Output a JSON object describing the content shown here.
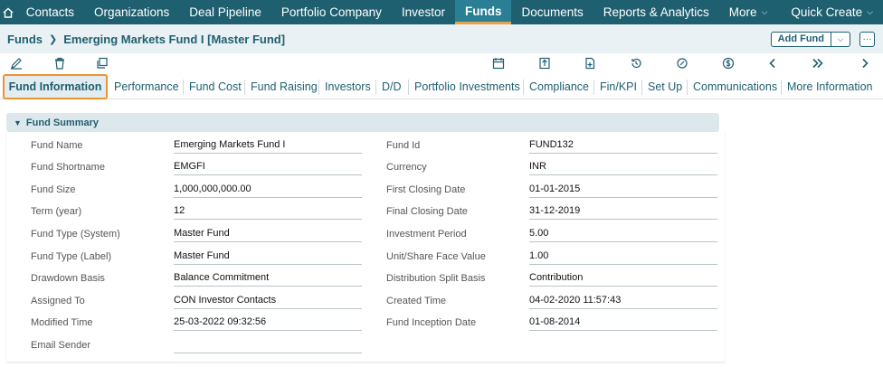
{
  "nav": {
    "items": [
      {
        "label": "Contacts"
      },
      {
        "label": "Organizations"
      },
      {
        "label": "Deal Pipeline"
      },
      {
        "label": "Portfolio Company"
      },
      {
        "label": "Investor"
      },
      {
        "label": "Funds"
      },
      {
        "label": "Documents"
      },
      {
        "label": "Reports & Analytics"
      }
    ],
    "more": "More",
    "quick_create": "Quick Create"
  },
  "breadcrumb": {
    "root": "Funds",
    "current": "Emerging Markets Fund I [Master Fund]"
  },
  "actions": {
    "add_fund": "Add Fund",
    "more": "···"
  },
  "tabs": {
    "active": "Fund Information",
    "items": [
      "Performance",
      "Fund Cost",
      "Fund Raising",
      "Investors",
      "D/D",
      "Portfolio Investments",
      "Compliance",
      "Fin/KPI",
      "Set Up",
      "Communications",
      "More Information"
    ]
  },
  "section": {
    "title": "Fund Summary"
  },
  "fields_left": [
    {
      "label": "Fund Name",
      "value": "Emerging Markets Fund I"
    },
    {
      "label": "Fund Shortname",
      "value": "EMGFI"
    },
    {
      "label": "Fund Size",
      "value": "1,000,000,000.00"
    },
    {
      "label": "Term (year)",
      "value": "12"
    },
    {
      "label": "Fund Type (System)",
      "value": "Master Fund"
    },
    {
      "label": "Fund Type (Label)",
      "value": "Master Fund"
    },
    {
      "label": "Drawdown Basis",
      "value": "Balance Commitment"
    },
    {
      "label": "Assigned To",
      "value": "CON Investor Contacts"
    },
    {
      "label": "Modified Time",
      "value": "25-03-2022 09:32:56"
    },
    {
      "label": "Email Sender",
      "value": ""
    }
  ],
  "fields_right": [
    {
      "label": "Fund Id",
      "value": "FUND132"
    },
    {
      "label": "Currency",
      "value": "INR"
    },
    {
      "label": "First Closing Date",
      "value": "01-01-2015"
    },
    {
      "label": "Final Closing Date",
      "value": "31-12-2019"
    },
    {
      "label": "Investment Period",
      "value": "5.00"
    },
    {
      "label": "Unit/Share Face Value",
      "value": "1.00"
    },
    {
      "label": "Distribution Split Basis",
      "value": "Contribution"
    },
    {
      "label": "Created Time",
      "value": "04-02-2020 11:57:43"
    },
    {
      "label": "Fund Inception Date",
      "value": "01-08-2014"
    }
  ],
  "colors": {
    "nav_bg": "#1e5f70",
    "accent": "#f0922e",
    "tab_text": "#1e5f70"
  }
}
